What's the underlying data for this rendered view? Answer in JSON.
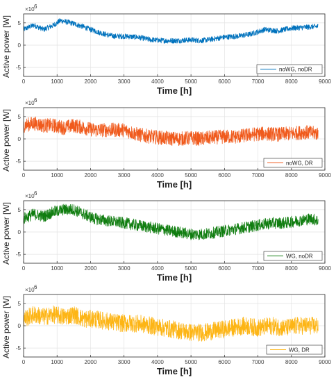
{
  "figure": {
    "y_multiplier_label": "×10",
    "y_multiplier_exponent": "6"
  },
  "chart_data": [
    {
      "type": "line",
      "xlabel": "Time [h]",
      "ylabel": "Active power [W]",
      "xlim": [
        0,
        9000
      ],
      "ylim": [
        -7,
        7
      ],
      "xticks": [
        0,
        1000,
        2000,
        3000,
        4000,
        5000,
        6000,
        7000,
        8000,
        9000
      ],
      "yticks": [
        -5,
        0,
        5
      ],
      "grid": true,
      "legend_position": "bottom-right",
      "series": [
        {
          "name": "noWG, noDR",
          "color": "#0072BD",
          "x": [
            0,
            300,
            600,
            900,
            1100,
            1400,
            1500,
            1750,
            2000,
            2400,
            2700,
            3000,
            3400,
            3800,
            4200,
            4600,
            5000,
            5300,
            5600,
            6000,
            6400,
            6800,
            7200,
            7600,
            8000,
            8400,
            8800
          ],
          "y": [
            3.5,
            4.5,
            3.5,
            4.5,
            5.5,
            5.0,
            4.8,
            4.2,
            3.5,
            2.5,
            2.0,
            2.0,
            1.8,
            1.2,
            1.0,
            1.0,
            1.2,
            1.0,
            1.3,
            1.8,
            2.0,
            2.5,
            3.5,
            3.2,
            3.8,
            4.0,
            4.2
          ],
          "noise": 0.6
        }
      ]
    },
    {
      "type": "line",
      "xlabel": "Time [h]",
      "ylabel": "Active power [W]",
      "xlim": [
        0,
        9000
      ],
      "ylim": [
        -7,
        7
      ],
      "xticks": [
        0,
        1000,
        2000,
        3000,
        4000,
        5000,
        6000,
        7000,
        8000,
        9000
      ],
      "yticks": [
        -5,
        0,
        5
      ],
      "grid": true,
      "legend_position": "bottom-right",
      "series": [
        {
          "name": "noWG, DR",
          "color": "#F05A1C",
          "x": [
            0,
            300,
            600,
            900,
            1200,
            1500,
            1800,
            2100,
            2500,
            3000,
            3400,
            3800,
            4200,
            4600,
            5000,
            5300,
            5600,
            6000,
            6400,
            6800,
            7200,
            7600,
            8000,
            8400,
            8800
          ],
          "y": [
            3.0,
            3.5,
            3.0,
            3.0,
            2.5,
            3.0,
            2.5,
            2.0,
            2.0,
            2.0,
            1.0,
            0.5,
            0.2,
            0.0,
            0.2,
            0.0,
            0.3,
            0.5,
            0.5,
            1.0,
            1.2,
            1.0,
            1.2,
            1.5,
            1.2
          ],
          "noise": 1.6
        }
      ]
    },
    {
      "type": "line",
      "xlabel": "Time [h]",
      "ylabel": "Active power [W]",
      "xlim": [
        0,
        9000
      ],
      "ylim": [
        -7,
        7
      ],
      "xticks": [
        0,
        1000,
        2000,
        3000,
        4000,
        5000,
        6000,
        7000,
        8000,
        9000
      ],
      "yticks": [
        -5,
        0,
        5
      ],
      "grid": true,
      "legend_position": "bottom-right",
      "series": [
        {
          "name": "WG, noDR",
          "color": "#0F7D0F",
          "x": [
            0,
            300,
            600,
            900,
            1200,
            1500,
            1800,
            2100,
            2500,
            3000,
            3400,
            3800,
            4200,
            4600,
            5000,
            5400,
            5800,
            6200,
            6600,
            7000,
            7400,
            7800,
            8200,
            8600,
            8800
          ],
          "y": [
            3.0,
            4.0,
            3.5,
            4.5,
            5.0,
            5.0,
            4.0,
            3.0,
            2.5,
            2.0,
            1.5,
            1.0,
            0.5,
            0.0,
            -0.5,
            -0.5,
            0.0,
            0.5,
            1.0,
            1.5,
            2.0,
            2.0,
            2.5,
            3.0,
            2.5
          ],
          "noise": 1.3
        }
      ]
    },
    {
      "type": "line",
      "xlabel": "Time [h]",
      "ylabel": "Active power [W]",
      "xlim": [
        0,
        9000
      ],
      "ylim": [
        -7,
        7
      ],
      "xticks": [
        0,
        1000,
        2000,
        3000,
        4000,
        5000,
        6000,
        7000,
        8000,
        9000
      ],
      "yticks": [
        -5,
        0,
        5
      ],
      "grid": true,
      "legend_position": "bottom-right",
      "series": [
        {
          "name": "WG, DR",
          "color": "#FDB515",
          "x": [
            0,
            300,
            600,
            900,
            1200,
            1500,
            1800,
            2100,
            2500,
            3000,
            3400,
            3800,
            4200,
            4600,
            5000,
            5400,
            5800,
            6200,
            6600,
            7000,
            7400,
            7800,
            8200,
            8600,
            8800
          ],
          "y": [
            1.5,
            2.5,
            2.0,
            2.5,
            2.0,
            2.5,
            1.5,
            1.5,
            1.0,
            0.5,
            0.5,
            0.0,
            -0.5,
            -1.0,
            -1.5,
            -1.5,
            -1.0,
            -0.5,
            0.0,
            -0.5,
            0.0,
            -0.5,
            0.0,
            0.0,
            0.0
          ],
          "noise": 2.0
        }
      ]
    }
  ]
}
